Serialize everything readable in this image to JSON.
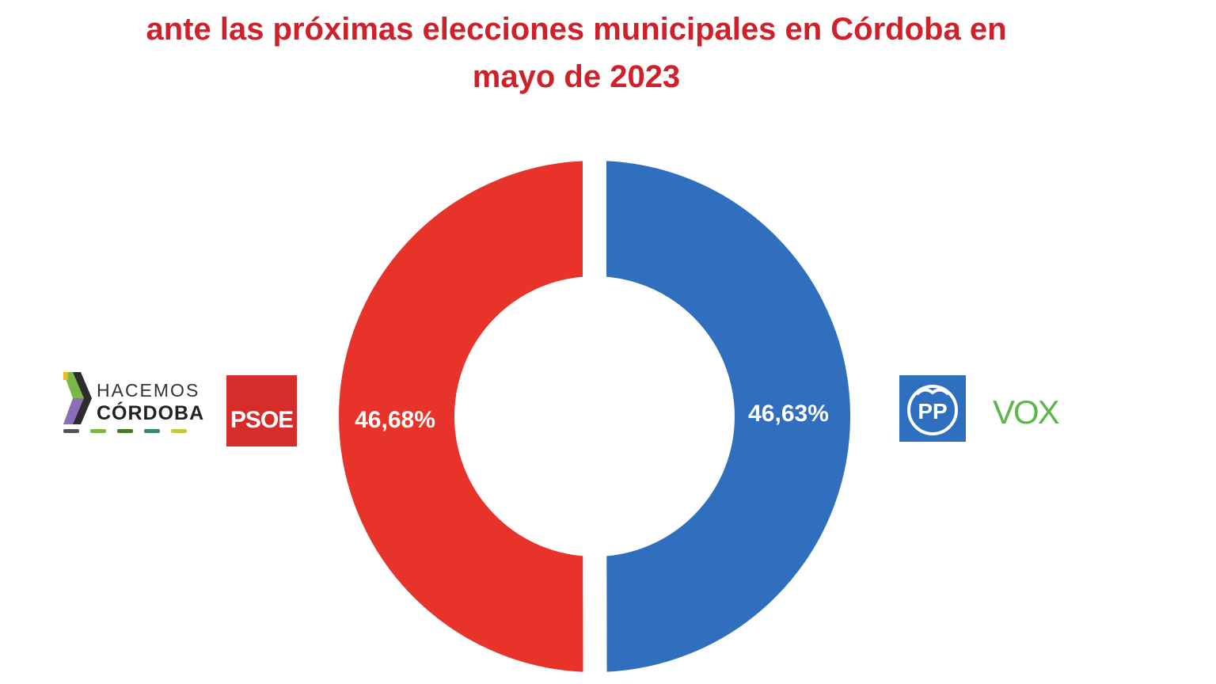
{
  "chart_data": {
    "type": "pie",
    "title_lines": [
      "ante las próximas elecciones municipales en Córdoba en",
      "mayo de 2023"
    ],
    "categories": [
      "HACEMOS CÓRDOBA + PSOE",
      "PP + VOX"
    ],
    "values": [
      46.68,
      46.63
    ],
    "value_labels": [
      "46,68%",
      "46,63%"
    ],
    "colors": [
      "#e8332a",
      "#2f6fbd"
    ],
    "legend": {
      "left": [
        "HACEMOS CÓRDOBA",
        "PSOE"
      ],
      "right": [
        "PP",
        "VOX"
      ]
    }
  },
  "logos": {
    "hacemos_line1": "HACEMOS",
    "hacemos_line2": "CÓRDOBA",
    "psoe": "PSOE",
    "pp": "PP",
    "vox": "VOX"
  }
}
